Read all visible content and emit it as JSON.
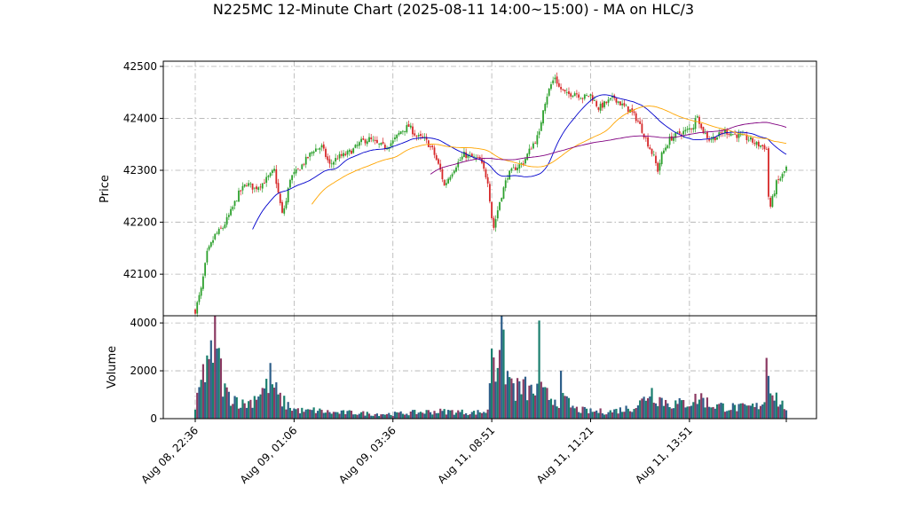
{
  "chart_data": {
    "type": "candlestick",
    "title": "N225MC 12-Minute Chart (2025-08-11 14:00~15:00) - MA on HLC/3",
    "price_panel": {
      "ylabel": "Price",
      "ylim": [
        42020,
        42510
      ],
      "yticks": [
        42100,
        42200,
        42300,
        42400,
        42500
      ],
      "grid": true
    },
    "volume_panel": {
      "ylabel": "Volume",
      "ylim": [
        0,
        4300
      ],
      "yticks": [
        0,
        2000,
        4000
      ],
      "grid": true
    },
    "x_ticks": [
      {
        "index": 0,
        "label": "Aug 08, 22:36"
      },
      {
        "index": 50,
        "label": "Aug 09, 01:06"
      },
      {
        "index": 100,
        "label": "Aug 09, 03:36"
      },
      {
        "index": 150,
        "label": "Aug 11, 08:51"
      },
      {
        "index": 200,
        "label": "Aug 11, 11:21"
      },
      {
        "index": 250,
        "label": "Aug 11, 13:51"
      }
    ],
    "n_bars": 300,
    "close_anchors": [
      [
        0,
        42030
      ],
      [
        3,
        42070
      ],
      [
        6,
        42140
      ],
      [
        10,
        42175
      ],
      [
        14,
        42190
      ],
      [
        18,
        42220
      ],
      [
        22,
        42255
      ],
      [
        26,
        42275
      ],
      [
        30,
        42265
      ],
      [
        34,
        42275
      ],
      [
        38,
        42290
      ],
      [
        40,
        42300
      ],
      [
        42,
        42255
      ],
      [
        44,
        42215
      ],
      [
        46,
        42240
      ],
      [
        48,
        42285
      ],
      [
        52,
        42300
      ],
      [
        56,
        42320
      ],
      [
        60,
        42340
      ],
      [
        64,
        42345
      ],
      [
        68,
        42310
      ],
      [
        72,
        42325
      ],
      [
        76,
        42330
      ],
      [
        80,
        42340
      ],
      [
        84,
        42355
      ],
      [
        88,
        42360
      ],
      [
        92,
        42350
      ],
      [
        96,
        42345
      ],
      [
        100,
        42355
      ],
      [
        104,
        42375
      ],
      [
        108,
        42385
      ],
      [
        112,
        42365
      ],
      [
        116,
        42360
      ],
      [
        120,
        42340
      ],
      [
        124,
        42300
      ],
      [
        126,
        42270
      ],
      [
        128,
        42285
      ],
      [
        132,
        42310
      ],
      [
        136,
        42330
      ],
      [
        140,
        42325
      ],
      [
        144,
        42320
      ],
      [
        148,
        42280
      ],
      [
        150,
        42210
      ],
      [
        151,
        42190
      ],
      [
        154,
        42240
      ],
      [
        158,
        42290
      ],
      [
        162,
        42305
      ],
      [
        166,
        42315
      ],
      [
        170,
        42345
      ],
      [
        174,
        42370
      ],
      [
        176,
        42420
      ],
      [
        178,
        42445
      ],
      [
        180,
        42465
      ],
      [
        182,
        42480
      ],
      [
        184,
        42460
      ],
      [
        188,
        42445
      ],
      [
        192,
        42450
      ],
      [
        196,
        42440
      ],
      [
        200,
        42445
      ],
      [
        204,
        42420
      ],
      [
        208,
        42430
      ],
      [
        212,
        42440
      ],
      [
        216,
        42425
      ],
      [
        220,
        42415
      ],
      [
        224,
        42395
      ],
      [
        228,
        42360
      ],
      [
        232,
        42325
      ],
      [
        234,
        42300
      ],
      [
        236,
        42330
      ],
      [
        240,
        42360
      ],
      [
        244,
        42370
      ],
      [
        248,
        42375
      ],
      [
        252,
        42385
      ],
      [
        254,
        42410
      ],
      [
        256,
        42380
      ],
      [
        260,
        42360
      ],
      [
        264,
        42365
      ],
      [
        268,
        42375
      ],
      [
        272,
        42370
      ],
      [
        276,
        42365
      ],
      [
        280,
        42360
      ],
      [
        284,
        42350
      ],
      [
        288,
        42345
      ],
      [
        289,
        42340
      ],
      [
        290,
        42250
      ],
      [
        291,
        42230
      ],
      [
        294,
        42275
      ],
      [
        297,
        42290
      ],
      [
        299,
        42305
      ]
    ],
    "volume_anchors": [
      [
        0,
        300
      ],
      [
        2,
        1200
      ],
      [
        5,
        2100
      ],
      [
        7,
        2800
      ],
      [
        9,
        2000
      ],
      [
        10,
        4100
      ],
      [
        11,
        3900
      ],
      [
        12,
        2400
      ],
      [
        14,
        1500
      ],
      [
        16,
        1000
      ],
      [
        20,
        900
      ],
      [
        24,
        600
      ],
      [
        28,
        700
      ],
      [
        32,
        1100
      ],
      [
        36,
        1300
      ],
      [
        38,
        1700
      ],
      [
        42,
        900
      ],
      [
        46,
        600
      ],
      [
        50,
        400
      ],
      [
        56,
        300
      ],
      [
        60,
        350
      ],
      [
        70,
        250
      ],
      [
        80,
        250
      ],
      [
        90,
        200
      ],
      [
        100,
        200
      ],
      [
        110,
        250
      ],
      [
        120,
        300
      ],
      [
        130,
        300
      ],
      [
        140,
        250
      ],
      [
        148,
        300
      ],
      [
        150,
        3400
      ],
      [
        152,
        2200
      ],
      [
        154,
        3600
      ],
      [
        156,
        2600
      ],
      [
        158,
        1800
      ],
      [
        162,
        1200
      ],
      [
        166,
        1300
      ],
      [
        170,
        1100
      ],
      [
        174,
        1200
      ],
      [
        176,
        1000
      ],
      [
        180,
        900
      ],
      [
        184,
        800
      ],
      [
        188,
        700
      ],
      [
        192,
        400
      ],
      [
        196,
        350
      ],
      [
        200,
        300
      ],
      [
        210,
        300
      ],
      [
        220,
        450
      ],
      [
        226,
        700
      ],
      [
        230,
        1200
      ],
      [
        234,
        900
      ],
      [
        238,
        700
      ],
      [
        244,
        600
      ],
      [
        250,
        700
      ],
      [
        256,
        900
      ],
      [
        260,
        600
      ],
      [
        268,
        500
      ],
      [
        276,
        450
      ],
      [
        284,
        500
      ],
      [
        288,
        800
      ],
      [
        289,
        2500
      ],
      [
        290,
        2200
      ],
      [
        292,
        1200
      ],
      [
        296,
        600
      ],
      [
        299,
        500
      ]
    ],
    "volume_spikes": [
      [
        174,
        4100
      ],
      [
        185,
        2000
      ]
    ],
    "price_jitter": 12,
    "ma_series": [
      {
        "period": 5,
        "color": "#0000cc"
      },
      {
        "period": 10,
        "color": "#ffa500"
      },
      {
        "period": 20,
        "color": "#800080"
      }
    ],
    "colors": {
      "up": "#2ca02c",
      "down": "#d62728",
      "volume": [
        "#1a7f6e",
        "#8b3a62",
        "#2e5f8a"
      ]
    }
  }
}
